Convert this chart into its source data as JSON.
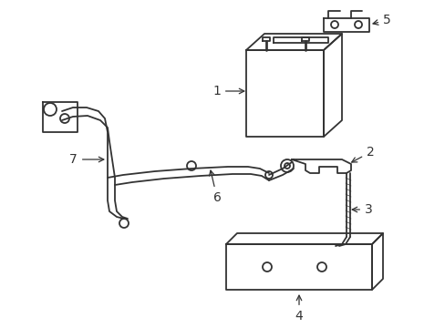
{
  "background_color": "#ffffff",
  "line_color": "#333333",
  "line_width": 1.3,
  "label_fontsize": 9,
  "figsize": [
    4.89,
    3.6
  ],
  "dpi": 100
}
